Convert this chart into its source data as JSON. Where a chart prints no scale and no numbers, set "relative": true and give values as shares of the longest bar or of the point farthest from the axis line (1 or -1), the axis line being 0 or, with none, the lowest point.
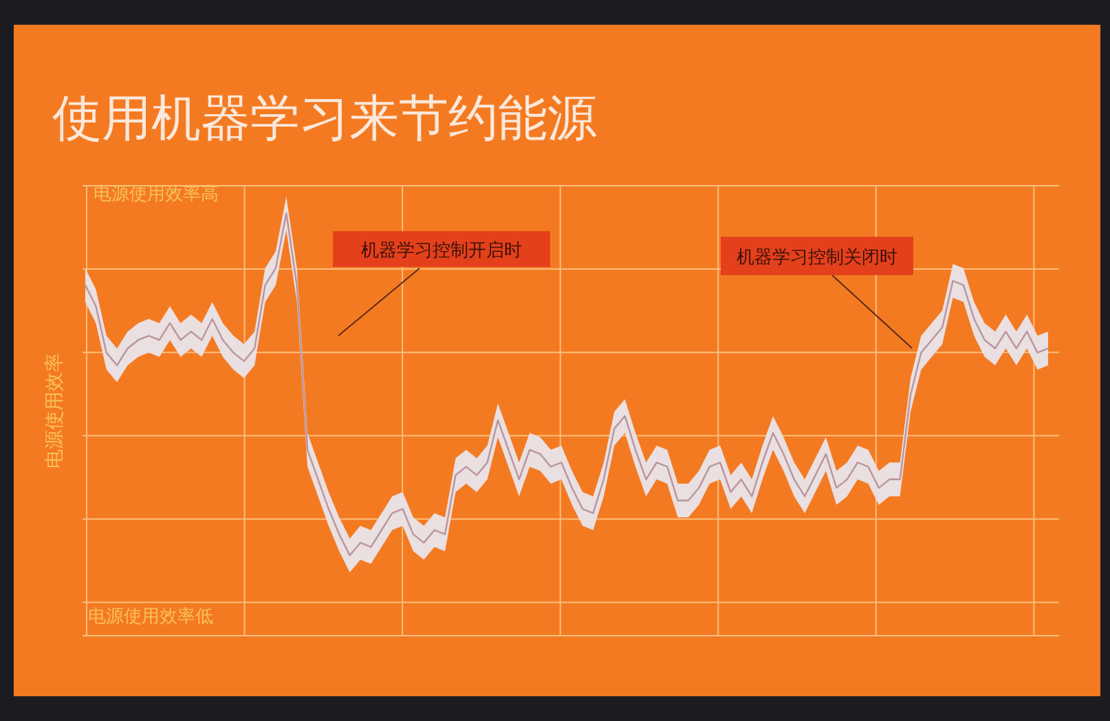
{
  "chart_data": {
    "type": "line",
    "title": "使用机器学习来节约能源",
    "ylabel": "电源使用效率",
    "relative": true,
    "grid": true,
    "annotations": [
      "电源使用效率高",
      "电源使用效率低",
      "机器学习控制开启时",
      "机器学习控制关闭时"
    ],
    "categories": [
      null,
      null,
      null,
      null,
      null,
      null,
      null,
      null,
      null,
      null,
      null,
      null,
      null,
      null,
      null,
      null,
      null,
      null,
      null,
      null,
      null,
      null,
      null,
      null,
      null,
      null,
      null,
      null,
      null,
      null,
      null,
      null,
      null,
      null,
      null,
      null,
      null,
      null,
      null,
      null,
      null,
      null,
      null,
      null,
      null,
      null,
      null,
      null,
      null,
      null,
      null,
      null,
      null,
      null,
      null,
      null,
      null,
      null,
      null,
      null,
      null,
      null,
      null,
      null,
      null,
      null,
      null,
      null,
      null,
      null,
      null,
      null,
      null,
      null,
      null,
      null,
      null,
      null,
      null,
      null,
      null,
      null,
      null,
      null,
      null,
      null,
      null,
      null,
      null,
      null,
      null,
      null
    ],
    "series": [
      {
        "color": "#b8959c",
        "values": [
          0.83,
          0.78,
          0.67,
          0.64,
          0.68,
          0.7,
          0.71,
          0.7,
          0.74,
          0.7,
          0.72,
          0.7,
          0.75,
          0.7,
          0.67,
          0.65,
          0.68,
          0.83,
          0.87,
          1.0,
          0.83,
          0.44,
          0.37,
          0.3,
          0.24,
          0.19,
          0.22,
          0.21,
          0.25,
          0.29,
          0.3,
          0.24,
          0.22,
          0.25,
          0.24,
          0.38,
          0.4,
          0.38,
          0.41,
          0.51,
          0.44,
          0.37,
          0.44,
          0.43,
          0.4,
          0.41,
          0.35,
          0.3,
          0.29,
          0.37,
          0.49,
          0.52,
          0.44,
          0.37,
          0.41,
          0.4,
          0.32,
          0.32,
          0.35,
          0.4,
          0.41,
          0.34,
          0.37,
          0.33,
          0.41,
          0.48,
          0.43,
          0.37,
          0.33,
          0.38,
          0.43,
          0.35,
          0.37,
          0.41,
          0.4,
          0.35,
          0.37,
          0.37,
          0.57,
          0.67,
          0.7,
          0.73,
          0.84,
          0.83,
          0.75,
          0.7,
          0.68,
          0.72,
          0.68,
          0.72,
          0.67,
          0.68
        ],
        "lower": [
          0.79,
          0.74,
          0.63,
          0.6,
          0.64,
          0.66,
          0.67,
          0.66,
          0.7,
          0.66,
          0.68,
          0.66,
          0.71,
          0.66,
          0.63,
          0.61,
          0.64,
          0.79,
          0.83,
          0.96,
          0.79,
          0.4,
          0.33,
          0.26,
          0.2,
          0.15,
          0.18,
          0.17,
          0.21,
          0.25,
          0.26,
          0.2,
          0.18,
          0.21,
          0.2,
          0.34,
          0.36,
          0.34,
          0.37,
          0.47,
          0.4,
          0.33,
          0.4,
          0.39,
          0.36,
          0.37,
          0.31,
          0.26,
          0.25,
          0.33,
          0.45,
          0.48,
          0.4,
          0.33,
          0.37,
          0.36,
          0.28,
          0.28,
          0.31,
          0.36,
          0.37,
          0.3,
          0.33,
          0.29,
          0.37,
          0.44,
          0.39,
          0.33,
          0.29,
          0.34,
          0.39,
          0.31,
          0.33,
          0.37,
          0.36,
          0.31,
          0.33,
          0.33,
          0.53,
          0.63,
          0.66,
          0.69,
          0.8,
          0.79,
          0.71,
          0.66,
          0.64,
          0.68,
          0.64,
          0.68,
          0.63,
          0.64
        ],
        "upper": [
          0.87,
          0.82,
          0.71,
          0.68,
          0.72,
          0.74,
          0.75,
          0.74,
          0.78,
          0.74,
          0.76,
          0.74,
          0.79,
          0.74,
          0.71,
          0.69,
          0.72,
          0.87,
          0.91,
          1.04,
          0.87,
          0.48,
          0.41,
          0.34,
          0.28,
          0.23,
          0.26,
          0.25,
          0.29,
          0.33,
          0.34,
          0.28,
          0.26,
          0.29,
          0.28,
          0.42,
          0.44,
          0.42,
          0.45,
          0.55,
          0.48,
          0.41,
          0.48,
          0.47,
          0.44,
          0.45,
          0.39,
          0.34,
          0.33,
          0.41,
          0.53,
          0.56,
          0.48,
          0.41,
          0.45,
          0.44,
          0.36,
          0.36,
          0.39,
          0.44,
          0.45,
          0.38,
          0.41,
          0.37,
          0.45,
          0.52,
          0.47,
          0.41,
          0.37,
          0.42,
          0.47,
          0.39,
          0.41,
          0.45,
          0.44,
          0.39,
          0.41,
          0.41,
          0.61,
          0.71,
          0.74,
          0.77,
          0.88,
          0.87,
          0.79,
          0.74,
          0.72,
          0.76,
          0.72,
          0.76,
          0.71,
          0.72
        ]
      }
    ]
  }
}
